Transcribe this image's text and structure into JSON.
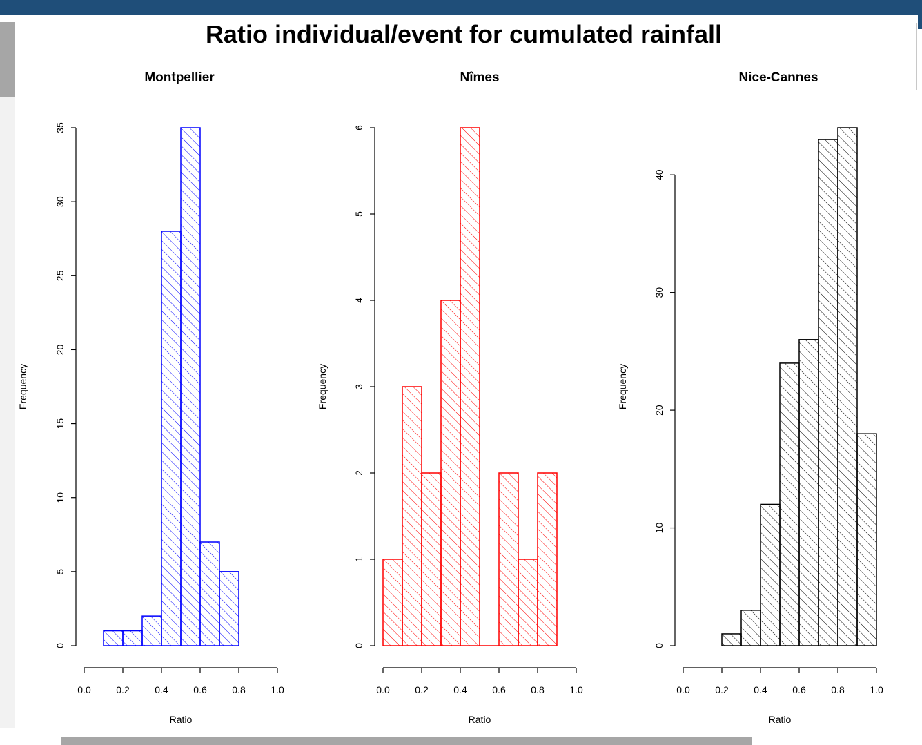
{
  "window": {
    "accent_color": "#1f4e79",
    "scrollbar_color": "#a6a6a6"
  },
  "figure_title": "Ratio individual/event for cumulated rainfall",
  "chart_data": [
    {
      "type": "bar",
      "title": "Montpellier",
      "xlabel": "Ratio",
      "ylabel": "Frequency",
      "color": "#0000ff",
      "fill": "hatched",
      "bins": [
        [
          0.1,
          0.2
        ],
        [
          0.2,
          0.3
        ],
        [
          0.3,
          0.4
        ],
        [
          0.4,
          0.5
        ],
        [
          0.5,
          0.6
        ],
        [
          0.6,
          0.7
        ],
        [
          0.7,
          0.8
        ]
      ],
      "values": [
        1,
        1,
        2,
        28,
        35,
        7,
        5
      ],
      "xlim": [
        0,
        1
      ],
      "ylim": [
        0,
        35
      ],
      "xticks": [
        "0.0",
        "0.2",
        "0.4",
        "0.6",
        "0.8",
        "1.0"
      ],
      "yticks": [
        "0",
        "5",
        "10",
        "15",
        "20",
        "25",
        "30",
        "35"
      ],
      "grid": false
    },
    {
      "type": "bar",
      "title": "Nîmes",
      "xlabel": "Ratio",
      "ylabel": "Frequency",
      "color": "#ff0000",
      "fill": "hatched",
      "bins": [
        [
          0.0,
          0.1
        ],
        [
          0.1,
          0.2
        ],
        [
          0.2,
          0.3
        ],
        [
          0.3,
          0.4
        ],
        [
          0.4,
          0.5
        ],
        [
          0.5,
          0.6
        ],
        [
          0.6,
          0.7
        ],
        [
          0.7,
          0.8
        ],
        [
          0.8,
          0.9
        ]
      ],
      "values": [
        1,
        3,
        2,
        4,
        6,
        0,
        2,
        1,
        2
      ],
      "xlim": [
        0,
        1
      ],
      "ylim": [
        0,
        6
      ],
      "xticks": [
        "0.0",
        "0.2",
        "0.4",
        "0.6",
        "0.8",
        "1.0"
      ],
      "yticks": [
        "0",
        "1",
        "2",
        "3",
        "4",
        "5",
        "6"
      ],
      "grid": false
    },
    {
      "type": "bar",
      "title": "Nice-Cannes",
      "xlabel": "Ratio",
      "ylabel": "Frequency",
      "color": "#000000",
      "fill": "hatched",
      "bins": [
        [
          0.2,
          0.3
        ],
        [
          0.3,
          0.4
        ],
        [
          0.4,
          0.5
        ],
        [
          0.5,
          0.6
        ],
        [
          0.6,
          0.7
        ],
        [
          0.7,
          0.8
        ],
        [
          0.8,
          0.9
        ],
        [
          0.9,
          1.0
        ]
      ],
      "values": [
        1,
        3,
        12,
        24,
        26,
        43,
        44,
        18
      ],
      "xlim": [
        0,
        1
      ],
      "ylim": [
        0,
        44
      ],
      "xticks": [
        "0.0",
        "0.2",
        "0.4",
        "0.6",
        "0.8",
        "1.0"
      ],
      "yticks": [
        "0",
        "10",
        "20",
        "30",
        "40"
      ],
      "grid": false
    }
  ]
}
